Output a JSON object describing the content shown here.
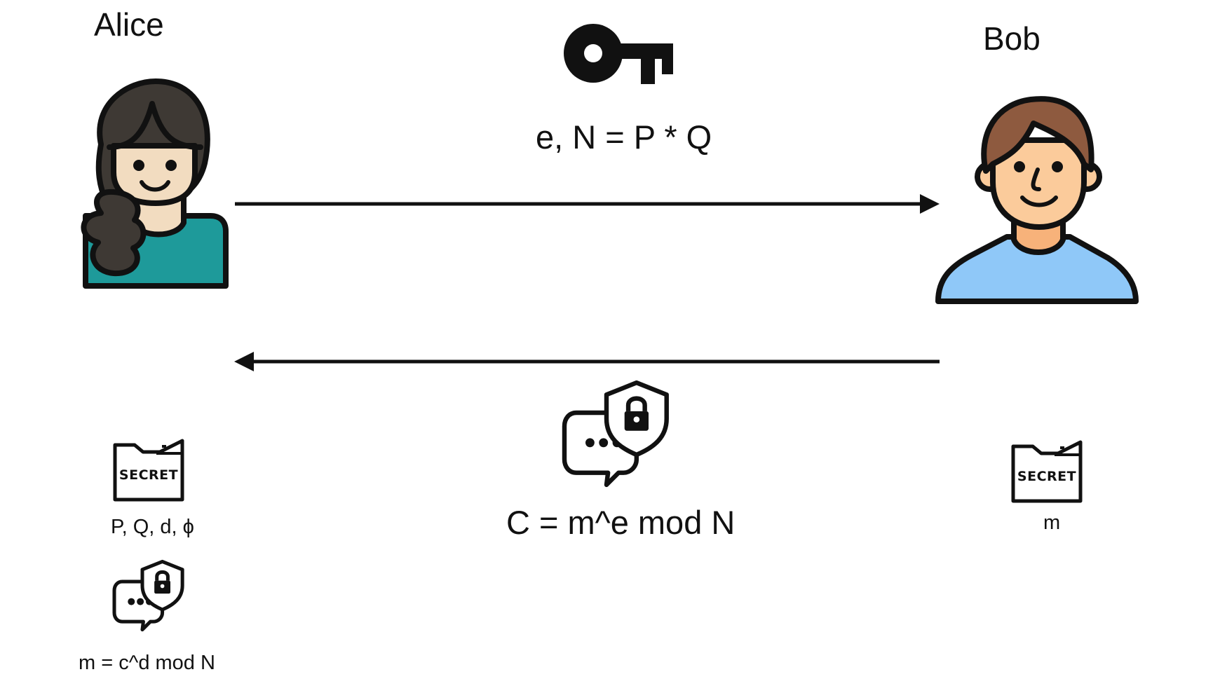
{
  "participants": {
    "alice": {
      "name": "Alice"
    },
    "bob": {
      "name": "Bob"
    }
  },
  "public_key": {
    "icon": "key-icon",
    "formula": "e, N = P * Q"
  },
  "ciphertext": {
    "icon": "secure-message-icon",
    "formula": "C = m^e mod N"
  },
  "alice_secret": {
    "icon": "secret-folder-icon",
    "folder_label": "SECRET",
    "values": "P, Q, d, ϕ"
  },
  "alice_decrypt": {
    "icon": "secure-message-icon",
    "formula": "m = c^d mod N"
  },
  "bob_secret": {
    "icon": "secret-folder-icon",
    "folder_label": "SECRET",
    "values": "m"
  },
  "colors": {
    "stroke": "#111111",
    "alice_hair": "#3e3934",
    "alice_skin": "#f2dcc0",
    "alice_shirt": "#1e9a9a",
    "bob_hair": "#8e5a3f",
    "bob_skin": "#fbcb9b",
    "bob_neck": "#f7b27a",
    "bob_shirt": "#8fc8f8"
  }
}
